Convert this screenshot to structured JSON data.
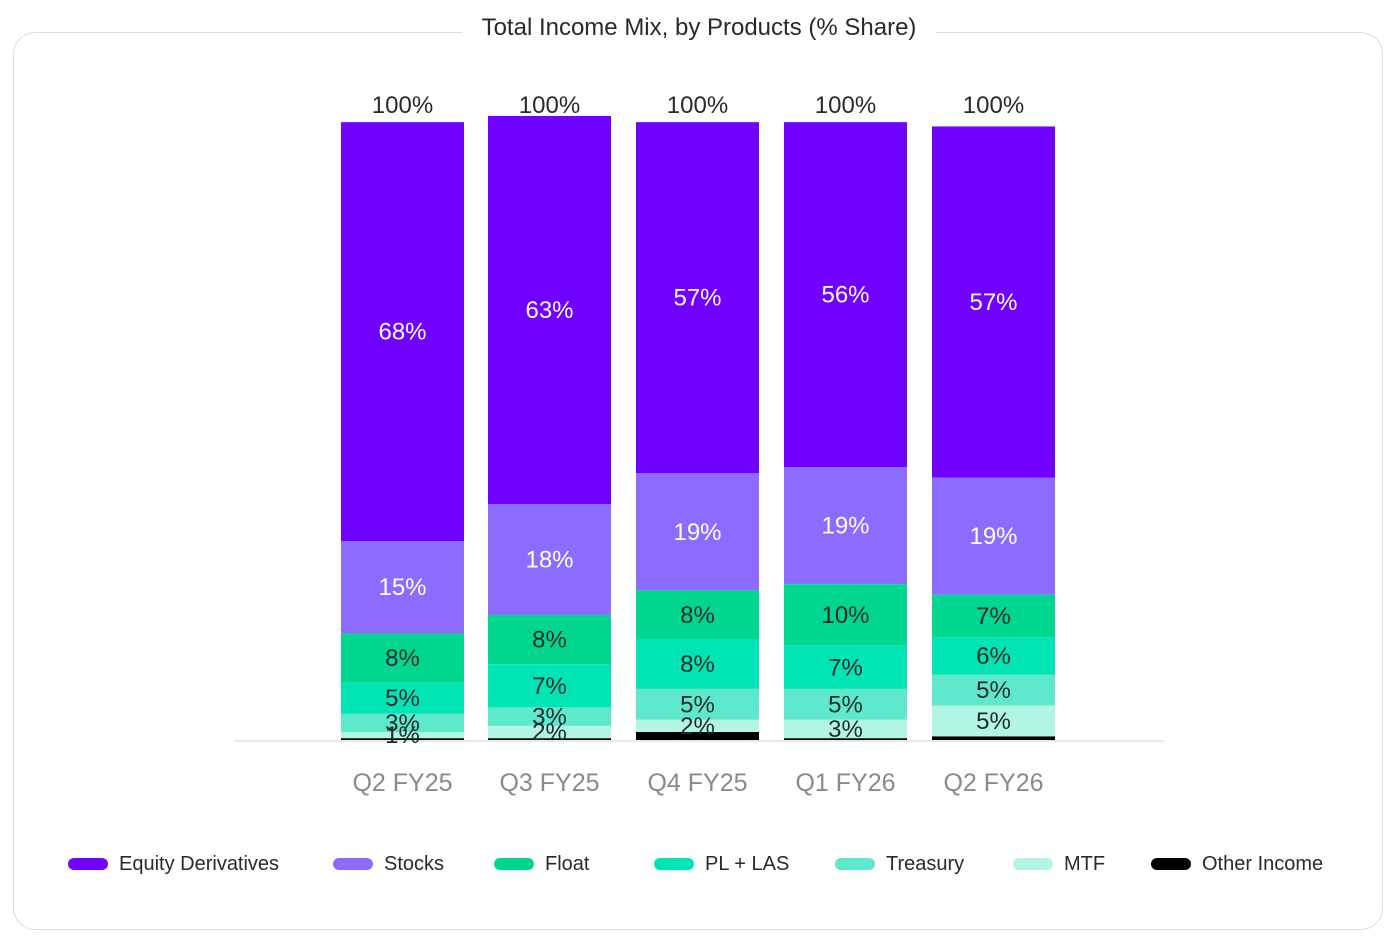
{
  "chart_data": {
    "type": "bar",
    "stacked": true,
    "title": "Total Income Mix, by Products (% Share)",
    "xlabel": "",
    "ylabel": "",
    "ylim": [
      0,
      100
    ],
    "categories": [
      "Q2 FY25",
      "Q3 FY25",
      "Q4 FY25",
      "Q1 FY26",
      "Q2 FY26"
    ],
    "totals": [
      "100%",
      "100%",
      "100%",
      "100%",
      "100%"
    ],
    "series": [
      {
        "name": "Other Income",
        "color": "#000000",
        "values": [
          0.3,
          0.3,
          1.3,
          0.3,
          0.6
        ],
        "labels": [
          "",
          "",
          "",
          "",
          ""
        ]
      },
      {
        "name": "MTF",
        "color": "#b3f5e4",
        "values": [
          1,
          2,
          2,
          3,
          5
        ],
        "labels": [
          "1%",
          "2%",
          "2%",
          "3%",
          "5%"
        ]
      },
      {
        "name": "Treasury",
        "color": "#5ee8cc",
        "values": [
          3,
          3,
          5,
          5,
          5
        ],
        "labels": [
          "3%",
          "3%",
          "5%",
          "5%",
          "5%"
        ]
      },
      {
        "name": "PL + LAS",
        "color": "#00e5b5",
        "values": [
          5,
          7,
          8,
          7,
          6
        ],
        "labels": [
          "5%",
          "7%",
          "8%",
          "7%",
          "6%"
        ]
      },
      {
        "name": "Float",
        "color": "#00d690",
        "values": [
          8,
          8,
          8,
          10,
          7
        ],
        "labels": [
          "8%",
          "8%",
          "8%",
          "10%",
          "7%"
        ]
      },
      {
        "name": "Stocks",
        "color": "#8c6cff",
        "values": [
          15,
          18,
          19,
          19,
          19
        ],
        "labels": [
          "15%",
          "18%",
          "19%",
          "19%",
          "19%"
        ]
      },
      {
        "name": "Equity Derivatives",
        "color": "#7000ff",
        "values": [
          68,
          63,
          57,
          56,
          57
        ],
        "labels": [
          "68%",
          "63%",
          "57%",
          "56%",
          "57%"
        ]
      }
    ],
    "legend_order": [
      "Equity Derivatives",
      "Stocks",
      "Float",
      "PL + LAS",
      "Treasury",
      "MTF",
      "Other Income"
    ],
    "legend_position": "bottom"
  }
}
